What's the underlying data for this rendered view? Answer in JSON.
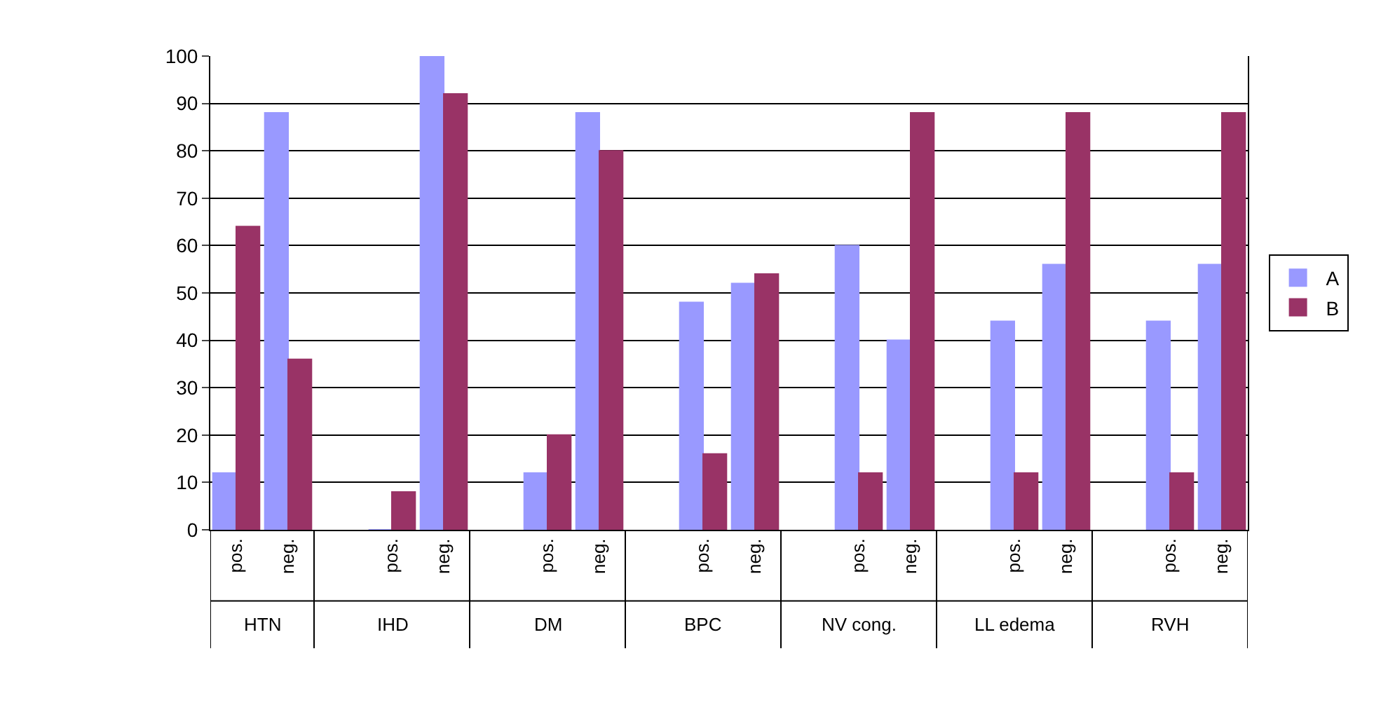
{
  "chart_data": {
    "type": "bar",
    "categories": [
      "pos.",
      "neg.",
      null,
      "pos.",
      "neg.",
      null,
      "pos.",
      "neg.",
      null,
      "pos.",
      "neg.",
      null,
      "pos.",
      "neg.",
      null,
      "pos.",
      "neg.",
      null,
      "pos.",
      "neg."
    ],
    "series": [
      {
        "name": "A",
        "color": "#9999ff",
        "values": [
          12,
          88,
          null,
          0,
          100,
          null,
          12,
          88,
          null,
          48,
          52,
          null,
          60,
          40,
          null,
          44,
          56,
          null,
          44,
          56
        ]
      },
      {
        "name": "B",
        "color": "#993366",
        "values": [
          64,
          36,
          null,
          8,
          92,
          null,
          20,
          80,
          null,
          16,
          54,
          null,
          12,
          88,
          null,
          12,
          88,
          null,
          12,
          88
        ]
      }
    ],
    "annotations": [
      "HTN",
      "IHD",
      "DM",
      "BPC",
      "NV cong.",
      "LL edema",
      "RVH"
    ],
    "ylim": [
      0,
      100
    ],
    "yticks": [
      0,
      10,
      20,
      30,
      40,
      50,
      60,
      70,
      80,
      90,
      100
    ],
    "grid": "y",
    "legend": "right"
  }
}
